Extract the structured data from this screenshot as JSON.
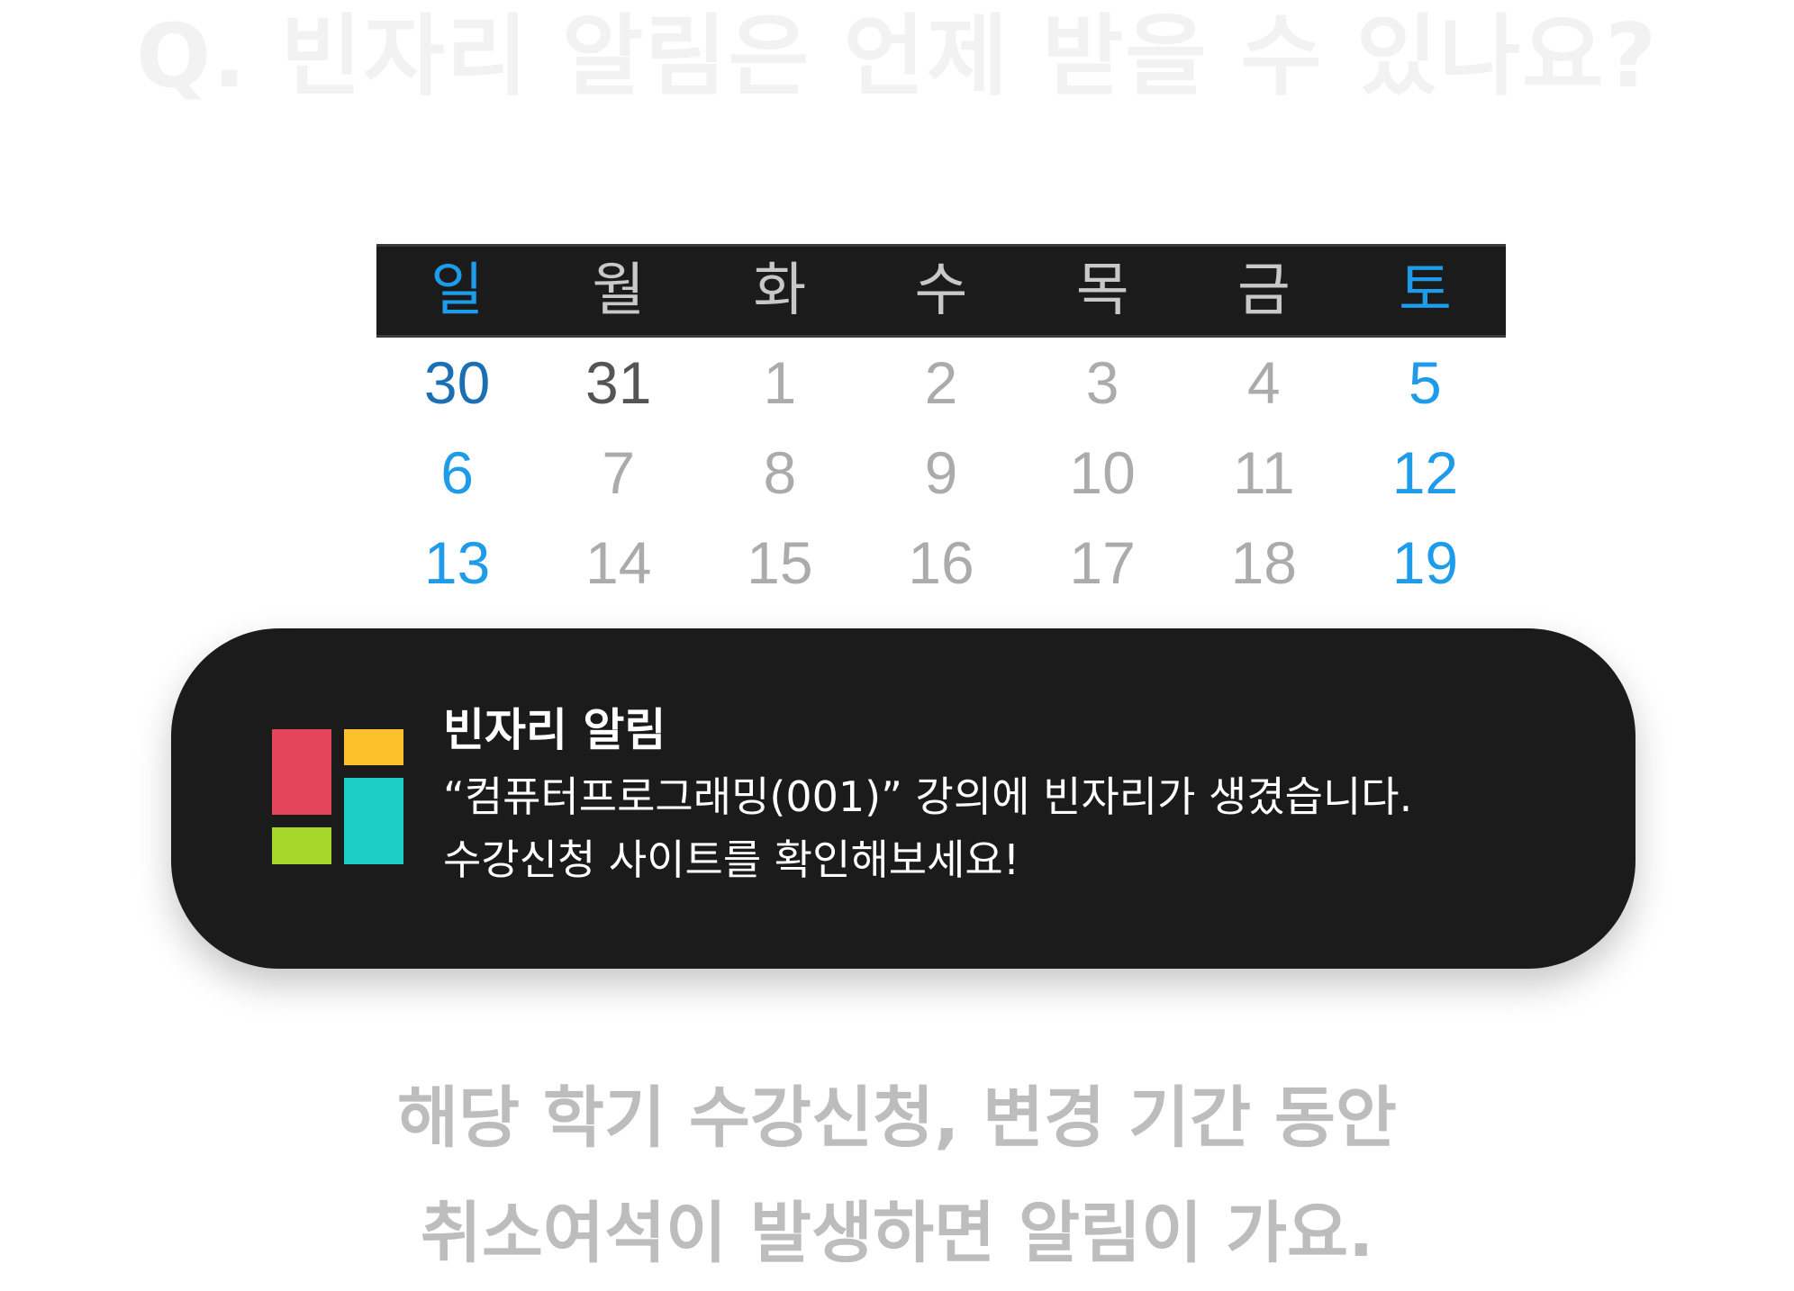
{
  "question": "Q. 빈자리 알림은 언제 받을 수 있나요?",
  "calendar": {
    "weekdays": [
      "일",
      "월",
      "화",
      "수",
      "목",
      "금",
      "토"
    ],
    "weeks": [
      [
        "30",
        "31",
        "1",
        "2",
        "3",
        "4",
        "5"
      ],
      [
        "6",
        "7",
        "8",
        "9",
        "10",
        "11",
        "12"
      ],
      [
        "13",
        "14",
        "15",
        "16",
        "17",
        "18",
        "19"
      ]
    ]
  },
  "notification": {
    "title": "빈자리 알림",
    "body_line1": "“컴퓨터프로그래밍(001)” 강의에 빈자리가 생겼습니다.",
    "body_line2": "수강신청 사이트를 확인해보세요!",
    "logo_colors": {
      "red": "#e4455b",
      "yellow": "#fcc12b",
      "green": "#a5d62a",
      "teal": "#1bcfc6"
    }
  },
  "footer": {
    "line1": "해당 학기 수강신청, 변경 기간 동안",
    "line2": "취소여석이 발생하면 알림이 가요."
  },
  "colors": {
    "weekend": "#1e9be9",
    "notification_bg": "#1b1b1b",
    "muted_text": "#bdbdbd"
  }
}
